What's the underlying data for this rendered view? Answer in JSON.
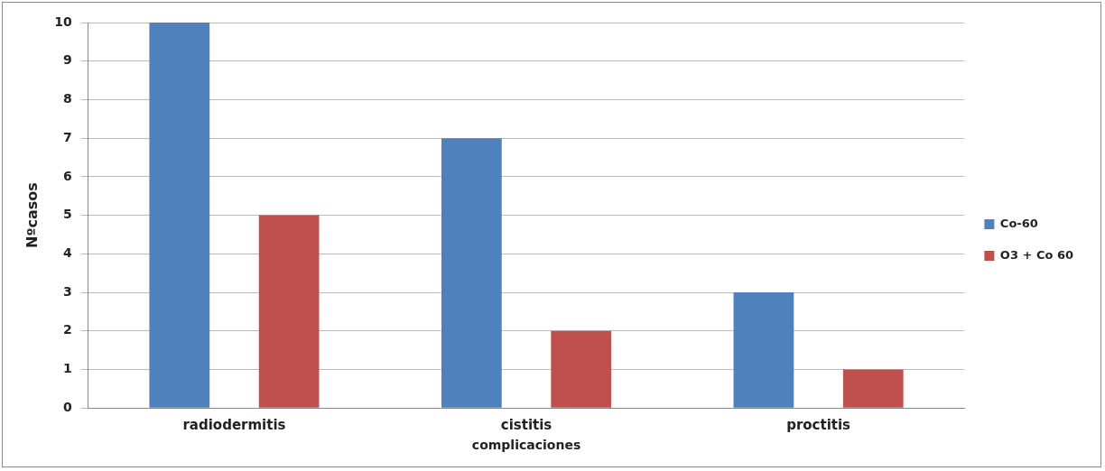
{
  "chart_data": {
    "type": "bar",
    "xlabel": "complicaciones",
    "ylabel": "Nºcasos",
    "categories": [
      "radiodermitis",
      "cistitis",
      "proctitis"
    ],
    "series": [
      {
        "name": "Co-60",
        "color": "#4f81bd",
        "values": [
          10,
          7,
          3
        ]
      },
      {
        "name": "O3 + Co 60",
        "color": "#c0504d",
        "values": [
          5,
          2,
          1
        ]
      }
    ],
    "ylim": [
      0,
      10
    ],
    "yticks": [
      0,
      1,
      2,
      3,
      4,
      5,
      6,
      7,
      8,
      9,
      10
    ],
    "grid": "y",
    "legend": "right"
  }
}
